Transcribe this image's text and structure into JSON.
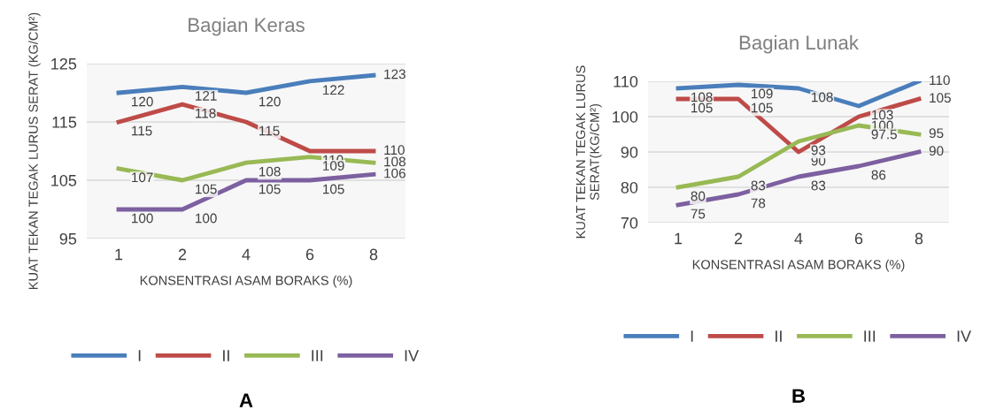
{
  "chart_data": [
    {
      "type": "line",
      "title": "Bagian Keras",
      "xlabel": "KONSENTRASI ASAM BORAKS (%)",
      "ylabel": "KUAT TEKAN TEGAK LURUS SERAT (KG/CM²)",
      "categories": [
        "1",
        "2",
        "4",
        "6",
        "8"
      ],
      "series": [
        {
          "name": "I",
          "color": "#4a7ebb",
          "values": [
            120,
            121,
            120,
            122,
            123
          ]
        },
        {
          "name": "II",
          "color": "#be4b48",
          "values": [
            115,
            118,
            115,
            110,
            110
          ]
        },
        {
          "name": "III",
          "color": "#98b954",
          "values": [
            107,
            105,
            108,
            109,
            108
          ]
        },
        {
          "name": "IV",
          "color": "#7d60a0",
          "values": [
            100,
            100,
            105,
            105,
            106
          ]
        }
      ],
      "ylim": [
        95,
        125
      ],
      "yticks": [
        95,
        105,
        115,
        125
      ],
      "grid": "y",
      "legend": "bottom",
      "data_labels": true,
      "marker": "none",
      "line_style": "solid",
      "annotations": [
        "A"
      ]
    },
    {
      "type": "line",
      "title": "Bagian Lunak",
      "xlabel": "KONSENTRASI ASAM BORAKS (%)",
      "ylabel": "KUAT TEKAN TEGAK LURUS SERAT(KG/CM²)",
      "categories": [
        "1",
        "2",
        "4",
        "6",
        "8"
      ],
      "series": [
        {
          "name": "I",
          "color": "#4a7ebb",
          "values": [
            108,
            109,
            108,
            103,
            110
          ]
        },
        {
          "name": "II",
          "color": "#be4b48",
          "values": [
            105,
            105,
            90,
            100,
            105
          ]
        },
        {
          "name": "III",
          "color": "#98b954",
          "values": [
            80,
            83,
            93,
            97.5,
            95
          ]
        },
        {
          "name": "IV",
          "color": "#7d60a0",
          "values": [
            75,
            78,
            83,
            86,
            90
          ]
        }
      ],
      "ylim": [
        70,
        110
      ],
      "yticks": [
        70,
        80,
        90,
        100,
        110
      ],
      "grid": "y",
      "legend": "bottom",
      "data_labels": true,
      "marker": "none",
      "line_style": "solid",
      "annotations": [
        "B"
      ]
    }
  ]
}
